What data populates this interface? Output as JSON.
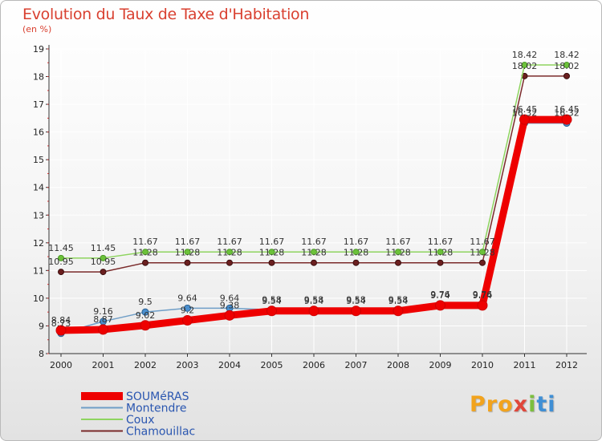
{
  "chart_data": {
    "type": "line",
    "title": "Evolution du Taux de Taxe d'Habitation",
    "subtitle": "(en %)",
    "xlabel": "",
    "ylabel": "",
    "ylim": [
      8,
      19
    ],
    "yticks": [
      "8",
      "9",
      "10",
      "11",
      "12",
      "13",
      "14",
      "15",
      "16",
      "17",
      "18",
      "19"
    ],
    "categories": [
      "2000",
      "2001",
      "2002",
      "2003",
      "2004",
      "2005",
      "2006",
      "2007",
      "2008",
      "2009",
      "2010",
      "2011",
      "2012"
    ],
    "legend_position": "bottom-left",
    "series": [
      {
        "name": "SOUMéRAS",
        "color": "#ee0000",
        "values": [
          8.84,
          8.87,
          9.02,
          9.2,
          9.38,
          9.54,
          9.54,
          9.54,
          9.54,
          9.74,
          9.74,
          16.45,
          16.45
        ],
        "labels": [
          "8.84",
          "8.87",
          "9.02",
          "9.2",
          "9.38",
          "9.54",
          "9.54",
          "9.54",
          "9.54",
          "9.74",
          "9.74",
          "16.45",
          "16.45"
        ]
      },
      {
        "name": "Montendre",
        "color": "#6f9ec7",
        "values": [
          8.73,
          9.16,
          9.5,
          9.64,
          9.64,
          9.58,
          9.58,
          9.58,
          9.58,
          9.76,
          9.76,
          16.32,
          16.32
        ],
        "labels": [
          "8.73",
          "9.16",
          "9.5",
          "9.64",
          "9.64",
          "9.58",
          "9.58",
          "9.58",
          "9.58",
          "9.76",
          "9.76",
          "16.32",
          "16.32"
        ]
      },
      {
        "name": "Coux",
        "color": "#8ed45f",
        "values": [
          11.45,
          11.45,
          11.67,
          11.67,
          11.67,
          11.67,
          11.67,
          11.67,
          11.67,
          11.67,
          11.67,
          18.42,
          18.42
        ],
        "labels": [
          "11.45",
          "11.45",
          "11.67",
          "11.67",
          "11.67",
          "11.67",
          "11.67",
          "11.67",
          "11.67",
          "11.67",
          "11.67",
          "18.42",
          "18.42"
        ]
      },
      {
        "name": "Chamouillac",
        "color": "#7a2a2a",
        "values": [
          10.95,
          10.95,
          11.28,
          11.28,
          11.28,
          11.28,
          11.28,
          11.28,
          11.28,
          11.28,
          11.28,
          18.02,
          18.02
        ],
        "labels": [
          "10.95",
          "10.95",
          "11.28",
          "11.28",
          "11.28",
          "11.28",
          "11.28",
          "11.28",
          "11.28",
          "11.28",
          "11.28",
          "18.02",
          "18.02"
        ]
      }
    ]
  },
  "logo": {
    "p1": "Pro",
    "p2": "x",
    "p3": "i",
    "p4": "ti"
  }
}
